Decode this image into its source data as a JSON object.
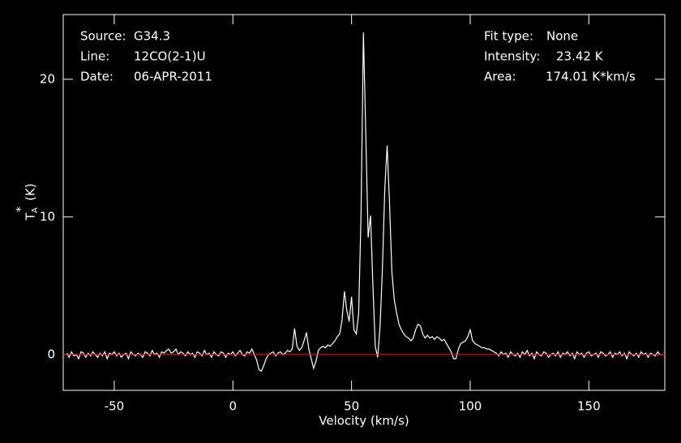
{
  "chart_data": {
    "type": "line",
    "x_label": "Velocity (km/s)",
    "y_label": {
      "symbol": "T",
      "sub": "A",
      "sup": "*",
      "unit": "(K)"
    },
    "annotations": {
      "left": [
        [
          "Source:",
          "G34.3"
        ],
        [
          "Line:",
          "12CO(2-1)U"
        ],
        [
          "Date:",
          "06-APR-2011"
        ]
      ],
      "right": [
        [
          "Fit type:",
          "None"
        ],
        [
          "Intensity:",
          "23.42 K"
        ],
        [
          "Area:",
          "174.01 K*km/s"
        ]
      ]
    },
    "xlim": [
      -71.5,
      182
    ],
    "ylim": [
      -2.6,
      24.7
    ],
    "xticks": [
      -50,
      0,
      50,
      100,
      150
    ],
    "yticks": [
      0,
      10,
      20
    ],
    "color": "#ffffff",
    "baseline": 0,
    "baseline_color": "#ff0000",
    "x": [
      -70,
      -69,
      -68,
      -67,
      -66,
      -65,
      -64,
      -63,
      -62,
      -61,
      -60,
      -59,
      -58,
      -57,
      -56,
      -55,
      -54,
      -53,
      -52,
      -51,
      -50,
      -49,
      -48,
      -47,
      -46,
      -45,
      -44,
      -43,
      -42,
      -41,
      -40,
      -39,
      -38,
      -37,
      -36,
      -35,
      -34,
      -33,
      -32,
      -31,
      -30,
      -29,
      -28,
      -27,
      -26,
      -25,
      -24,
      -23,
      -22,
      -21,
      -20,
      -19,
      -18,
      -17,
      -16,
      -15,
      -14,
      -13,
      -12,
      -11,
      -10,
      -9,
      -8,
      -7,
      -6,
      -5,
      -4,
      -3,
      -2,
      -1,
      0,
      1,
      2,
      3,
      4,
      5,
      6,
      7,
      8,
      9,
      10,
      11,
      12,
      13,
      14,
      15,
      16,
      17,
      18,
      19,
      20,
      21,
      22,
      23,
      24,
      25,
      26,
      27,
      28,
      29,
      30,
      31,
      32,
      33,
      34,
      35,
      36,
      37,
      38,
      39,
      40,
      41,
      42,
      43,
      44,
      45,
      46,
      47,
      48,
      49,
      50,
      51,
      52,
      53,
      54,
      55,
      56,
      57,
      58,
      59,
      60,
      61,
      62,
      63,
      64,
      65,
      66,
      67,
      68,
      69,
      70,
      71,
      72,
      73,
      74,
      75,
      76,
      77,
      78,
      79,
      80,
      81,
      82,
      83,
      84,
      85,
      86,
      87,
      88,
      89,
      90,
      91,
      92,
      93,
      94,
      95,
      96,
      97,
      98,
      99,
      100,
      101,
      102,
      103,
      104,
      105,
      106,
      107,
      108,
      109,
      110,
      111,
      112,
      113,
      114,
      115,
      116,
      117,
      118,
      119,
      120,
      121,
      122,
      123,
      124,
      125,
      126,
      127,
      128,
      129,
      130,
      131,
      132,
      133,
      134,
      135,
      136,
      137,
      138,
      139,
      140,
      141,
      142,
      143,
      144,
      145,
      146,
      147,
      148,
      149,
      150,
      151,
      152,
      153,
      154,
      155,
      156,
      157,
      158,
      159,
      160,
      161,
      162,
      163,
      164,
      165,
      166,
      167,
      168,
      169,
      170,
      171,
      172,
      173,
      174,
      175,
      176,
      177,
      178,
      179,
      180
    ],
    "values": [
      0.1,
      -0.2,
      0.2,
      -0.1,
      0.0,
      -0.3,
      0.2,
      0.1,
      -0.2,
      0.1,
      -0.1,
      0.2,
      0.0,
      -0.2,
      0.1,
      -0.1,
      0.2,
      -0.3,
      0.1,
      0.0,
      0.2,
      -0.1,
      0.1,
      -0.2,
      0.0,
      0.1,
      -0.3,
      0.2,
      0.0,
      -0.1,
      0.1,
      0.0,
      -0.2,
      0.2,
      0.1,
      -0.1,
      0.3,
      0.0,
      0.1,
      -0.2,
      0.2,
      0.1,
      0.3,
      0.4,
      0.1,
      0.2,
      0.4,
      0.0,
      0.2,
      0.1,
      -0.1,
      0.2,
      0.0,
      0.1,
      -0.2,
      0.2,
      0.1,
      -0.1,
      0.3,
      0.0,
      0.1,
      -0.2,
      0.2,
      0.0,
      -0.1,
      0.2,
      0.1,
      -0.2,
      0.1,
      0.0,
      0.2,
      -0.1,
      0.1,
      0.3,
      0.0,
      -0.1,
      0.2,
      0.1,
      0.4,
      0.0,
      -0.4,
      -1.1,
      -1.2,
      -0.8,
      -0.3,
      0.0,
      0.1,
      0.2,
      -0.1,
      0.1,
      0.2,
      0.0,
      0.1,
      0.3,
      0.2,
      0.4,
      1.9,
      0.6,
      0.3,
      0.5,
      1.0,
      1.6,
      0.4,
      -0.3,
      -1.0,
      -0.5,
      0.3,
      0.5,
      0.6,
      0.5,
      0.7,
      0.6,
      0.8,
      1.0,
      1.3,
      1.5,
      2.5,
      4.6,
      3.2,
      2.4,
      4.2,
      1.8,
      1.5,
      3.0,
      10.2,
      23.4,
      16.0,
      8.5,
      10.1,
      5.0,
      0.6,
      -0.2,
      2.0,
      6.2,
      12.0,
      15.2,
      11.0,
      6.0,
      4.0,
      3.0,
      2.2,
      1.8,
      1.5,
      1.3,
      1.2,
      1.0,
      1.2,
      1.8,
      2.2,
      2.1,
      1.5,
      1.2,
      1.4,
      1.2,
      1.3,
      1.1,
      1.3,
      1.2,
      1.0,
      1.1,
      0.8,
      0.5,
      0.2,
      -0.3,
      -0.3,
      0.4,
      0.8,
      0.9,
      1.0,
      1.3,
      1.8,
      1.0,
      0.8,
      0.7,
      0.6,
      0.5,
      0.5,
      0.4,
      0.4,
      0.3,
      0.2,
      0.1,
      -0.1,
      0.2,
      0.0,
      0.1,
      -0.2,
      0.2,
      0.0,
      -0.1,
      0.1,
      -0.2,
      0.2,
      0.0,
      0.3,
      -0.1,
      0.1,
      -0.3,
      0.2,
      0.0,
      -0.1,
      0.2,
      0.1,
      -0.2,
      0.0,
      0.1,
      -0.1,
      0.2,
      -0.2,
      0.1,
      0.0,
      0.2,
      -0.1,
      0.1,
      -0.3,
      0.2,
      0.0,
      0.1,
      -0.2,
      0.1,
      0.2,
      -0.1,
      0.0,
      0.1,
      -0.2,
      0.2,
      0.1,
      -0.1,
      0.0,
      0.2,
      -0.2,
      0.1,
      0.0,
      0.2,
      -0.1,
      0.1,
      -0.3,
      0.2,
      0.0,
      -0.1,
      0.1,
      -0.2,
      0.2,
      0.0,
      0.1,
      -0.2,
      0.1,
      0.0,
      -0.1,
      0.2,
      0.0
    ]
  }
}
